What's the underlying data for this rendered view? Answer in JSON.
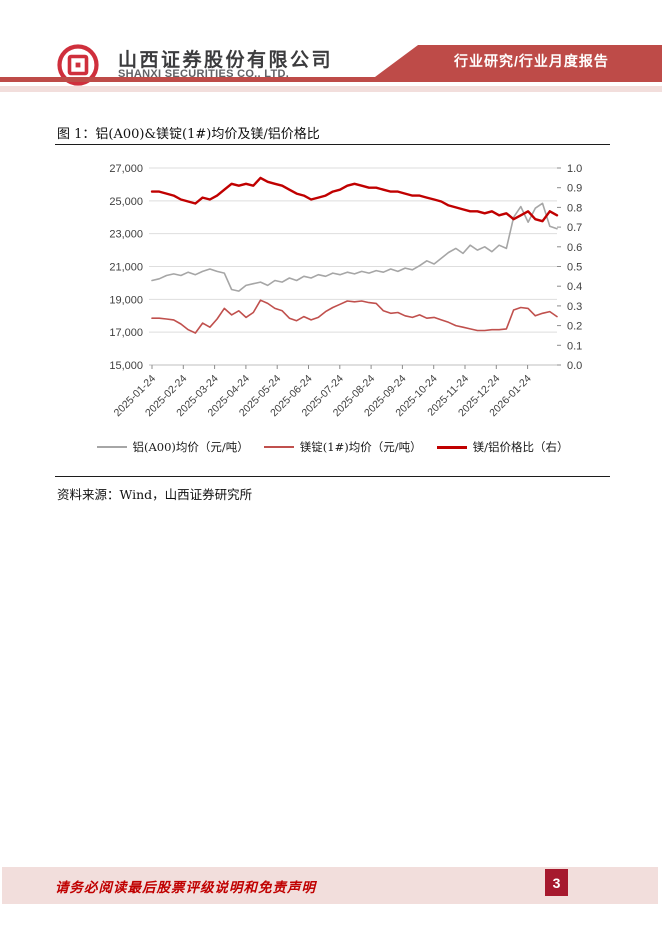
{
  "header": {
    "company_cn": "山西证券股份有限公司",
    "company_en": "SHANXI SECURITIES CO., LTD.",
    "banner": "行业研究/行业月度报告"
  },
  "figure": {
    "title": "图 1：铝(A00)&镁锭(1#)均价及镁/铝价格比",
    "source": "资料来源：Wind，山西证券研究所"
  },
  "footer": {
    "disclaimer": "请务必阅读最后股票评级说明和免责声明",
    "page_number": "3"
  },
  "colors": {
    "brand_red": "#be4b48",
    "soft_pink": "#f2dedc",
    "bright_red": "#c00000",
    "deep_red": "#a6192e",
    "logo_red": "#cf2f3c",
    "grid_gray": "#dedede",
    "axis_text": "#404040"
  },
  "chart_data": {
    "type": "line",
    "title": "铝(A00)&镁锭(1#)均价及镁/铝价格比",
    "grid": "horizontal",
    "legend_position": "bottom",
    "x_tick_labels": [
      "2025-01-24",
      "2025-02-24",
      "2025-03-24",
      "2025-04-24",
      "2025-05-24",
      "2025-06-24",
      "2025-07-24",
      "2025-08-24",
      "2025-09-24",
      "2025-10-24",
      "2025-11-24",
      "2025-12-24",
      "2026-01-24"
    ],
    "x_start": "2025-01-24",
    "x_sampling": "weekly estimates read from curve, 57 points, extends ~1 month past last tick",
    "left_axis": {
      "min": 15000,
      "max": 27000,
      "tick_labels": [
        "27,000",
        "25,000",
        "23,000",
        "21,000",
        "19,000",
        "17,000",
        "15,000"
      ]
    },
    "right_axis": {
      "min": 0.0,
      "max": 1.0,
      "tick_labels": [
        "1.0",
        "0.9",
        "0.8",
        "0.7",
        "0.6",
        "0.5",
        "0.4",
        "0.3",
        "0.2",
        "0.1",
        "0.0"
      ]
    },
    "series": [
      {
        "name": "铝(A00)均价（元/吨）",
        "axis": "left",
        "color": "#a6a6a6",
        "values": [
          20150,
          20250,
          20450,
          20550,
          20450,
          20650,
          20500,
          20700,
          20850,
          20700,
          20600,
          19600,
          19500,
          19850,
          19950,
          20050,
          19850,
          20150,
          20050,
          20300,
          20150,
          20400,
          20300,
          20500,
          20400,
          20600,
          20500,
          20650,
          20550,
          20700,
          20600,
          20750,
          20650,
          20850,
          20700,
          20900,
          20800,
          21050,
          21350,
          21150,
          21500,
          21850,
          22100,
          21800,
          22300,
          22000,
          22200,
          21900,
          22300,
          22100,
          24000,
          24650,
          23700,
          24550,
          24850,
          23450,
          23300
        ]
      },
      {
        "name": "镁锭(1#)均价（元/吨）",
        "axis": "left",
        "color": "#c0504d",
        "values": [
          17850,
          17850,
          17800,
          17750,
          17500,
          17150,
          16950,
          17550,
          17300,
          17800,
          18450,
          18050,
          18300,
          17900,
          18200,
          18950,
          18750,
          18450,
          18300,
          17850,
          17700,
          17950,
          17750,
          17900,
          18250,
          18500,
          18700,
          18900,
          18850,
          18900,
          18800,
          18750,
          18300,
          18150,
          18200,
          18000,
          17900,
          18050,
          17850,
          17900,
          17750,
          17600,
          17400,
          17300,
          17200,
          17100,
          17100,
          17150,
          17150,
          17200,
          18350,
          18500,
          18450,
          18000,
          18150,
          18250,
          17950
        ]
      },
      {
        "name": "镁/铝价格比（右）",
        "axis": "right",
        "color": "#c00000",
        "values": [
          0.88,
          0.88,
          0.87,
          0.86,
          0.84,
          0.83,
          0.82,
          0.85,
          0.84,
          0.86,
          0.89,
          0.92,
          0.91,
          0.92,
          0.91,
          0.95,
          0.93,
          0.92,
          0.91,
          0.89,
          0.87,
          0.86,
          0.84,
          0.85,
          0.86,
          0.88,
          0.89,
          0.91,
          0.92,
          0.91,
          0.9,
          0.9,
          0.89,
          0.88,
          0.88,
          0.87,
          0.86,
          0.86,
          0.85,
          0.84,
          0.83,
          0.81,
          0.8,
          0.79,
          0.78,
          0.78,
          0.77,
          0.78,
          0.76,
          0.77,
          0.74,
          0.76,
          0.78,
          0.74,
          0.73,
          0.78,
          0.76
        ]
      }
    ]
  }
}
